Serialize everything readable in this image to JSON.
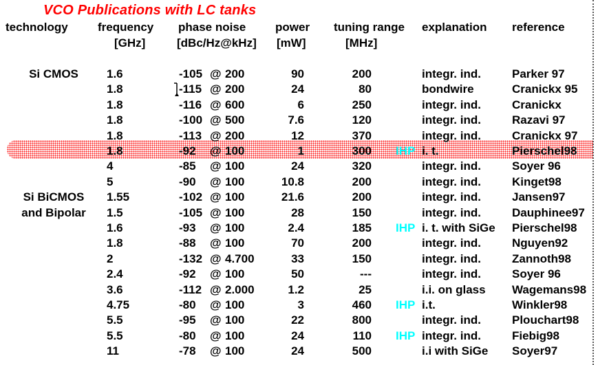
{
  "title": "VCO Publications with LC tanks",
  "colors": {
    "title": "#ff0000",
    "ihp": "#00ffff",
    "highlight_dots": "#ff1a1a"
  },
  "symbols": {
    "at": "@"
  },
  "ihp_label": "IHP",
  "header": {
    "technology": "technology",
    "frequency": "frequency",
    "frequency_unit": "[GHz]",
    "phase_noise": "phase noise",
    "phase_noise_unit": "[dBc/Hz@kHz]",
    "power": "power",
    "power_unit": "[mW]",
    "tuning_range": "tuning range",
    "tuning_range_unit": "[MHz]",
    "explanation": "explanation",
    "reference": "reference"
  },
  "rows": [
    {
      "technology": "Si CMOS",
      "frequency": "1.6",
      "pn_value": "-105",
      "pn_offset": "200",
      "power": "90",
      "tuning": "200",
      "ihp": false,
      "explanation": "integr. ind.",
      "reference": "Parker 97",
      "highlight": false,
      "caret": false
    },
    {
      "technology": "",
      "frequency": "1.8",
      "pn_value": "-115",
      "pn_offset": "200",
      "power": "24",
      "tuning": "80",
      "ihp": false,
      "explanation": "bondwire",
      "reference": "Cranickx 95",
      "highlight": false,
      "caret": true
    },
    {
      "technology": "",
      "frequency": "1.8",
      "pn_value": "-116",
      "pn_offset": "600",
      "power": "6",
      "tuning": "250",
      "ihp": false,
      "explanation": "integr. ind.",
      "reference": "Cranickx",
      "highlight": false,
      "caret": false
    },
    {
      "technology": "",
      "frequency": "1.8",
      "pn_value": "-100",
      "pn_offset": "500",
      "power": "7.6",
      "tuning": "120",
      "ihp": false,
      "explanation": "integr. ind.",
      "reference": "Razavi 97",
      "highlight": false,
      "caret": false
    },
    {
      "technology": "",
      "frequency": "1.8",
      "pn_value": "-113",
      "pn_offset": "200",
      "power": "12",
      "tuning": "370",
      "ihp": false,
      "explanation": "integr. ind.",
      "reference": "Cranickx 97",
      "highlight": false,
      "caret": false
    },
    {
      "technology": "",
      "frequency": "1.8",
      "pn_value": "-92",
      "pn_offset": "100",
      "power": "1",
      "tuning": "300",
      "ihp": true,
      "explanation": "i. t.",
      "reference": "Pierschel98",
      "highlight": true,
      "caret": false
    },
    {
      "technology": "",
      "frequency": "4",
      "pn_value": "-85",
      "pn_offset": "100",
      "power": "24",
      "tuning": "320",
      "ihp": false,
      "explanation": "integr. ind.",
      "reference": "Soyer 96",
      "highlight": false,
      "caret": false
    },
    {
      "technology": "",
      "frequency": "5",
      "pn_value": "-90",
      "pn_offset": "100",
      "power": "10.8",
      "tuning": "200",
      "ihp": false,
      "explanation": "integr. ind.",
      "reference": "Kinget98",
      "highlight": false,
      "caret": false
    },
    {
      "technology": "Si BiCMOS",
      "frequency": "1.55",
      "pn_value": "-102",
      "pn_offset": "100",
      "power": "21.6",
      "tuning": "200",
      "ihp": false,
      "explanation": "integr. ind.",
      "reference": "Jansen97",
      "highlight": false,
      "caret": false
    },
    {
      "technology": "and Bipolar",
      "frequency": "1.5",
      "pn_value": "-105",
      "pn_offset": "100",
      "power": "28",
      "tuning": "150",
      "ihp": false,
      "explanation": "integr. ind.",
      "reference": "Dauphinee97",
      "highlight": false,
      "caret": false
    },
    {
      "technology": "",
      "frequency": "1.6",
      "pn_value": "-93",
      "pn_offset": "100",
      "power": "2.4",
      "tuning": "185",
      "ihp": true,
      "explanation": "i. t. with SiGe",
      "reference": "Pierschel98",
      "highlight": false,
      "caret": false
    },
    {
      "technology": "",
      "frequency": "1.8",
      "pn_value": "-88",
      "pn_offset": "100",
      "power": "70",
      "tuning": "200",
      "ihp": false,
      "explanation": "integr. ind.",
      "reference": "Nguyen92",
      "highlight": false,
      "caret": false
    },
    {
      "technology": "",
      "frequency": "2",
      "pn_value": "-132",
      "pn_offset": "4.700",
      "power": "33",
      "tuning": "150",
      "ihp": false,
      "explanation": "integr. ind.",
      "reference": "Zannoth98",
      "highlight": false,
      "caret": false
    },
    {
      "technology": "",
      "frequency": "2.4",
      "pn_value": "-92",
      "pn_offset": "100",
      "power": "50",
      "tuning": "---",
      "ihp": false,
      "explanation": "integr. ind.",
      "reference": "Soyer 96",
      "highlight": false,
      "caret": false
    },
    {
      "technology": "",
      "frequency": "3.6",
      "pn_value": "-112",
      "pn_offset": "2.000",
      "power": "1.2",
      "tuning": "25",
      "ihp": false,
      "explanation": "i.i. on glass",
      "reference": "Wagemans98",
      "highlight": false,
      "caret": false
    },
    {
      "technology": "",
      "frequency": "4.75",
      "pn_value": "-80",
      "pn_offset": "100",
      "power": "3",
      "tuning": "460",
      "ihp": true,
      "explanation": "i.t.",
      "reference": "Winkler98",
      "highlight": false,
      "caret": false
    },
    {
      "technology": "",
      "frequency": "5.5",
      "pn_value": "-95",
      "pn_offset": "100",
      "power": "22",
      "tuning": "800",
      "ihp": false,
      "explanation": "integr. ind.",
      "reference": "Plouchart98",
      "highlight": false,
      "caret": false
    },
    {
      "technology": "",
      "frequency": "5.5",
      "pn_value": "-80",
      "pn_offset": "100",
      "power": "24",
      "tuning": "110",
      "ihp": true,
      "explanation": "integr. ind.",
      "reference": "Fiebig98",
      "highlight": false,
      "caret": false
    },
    {
      "technology": "",
      "frequency": "11",
      "pn_value": "-78",
      "pn_offset": "100",
      "power": "24",
      "tuning": "500",
      "ihp": false,
      "explanation": "i.i with SiGe",
      "reference": "Soyer97",
      "highlight": false,
      "caret": false
    }
  ]
}
